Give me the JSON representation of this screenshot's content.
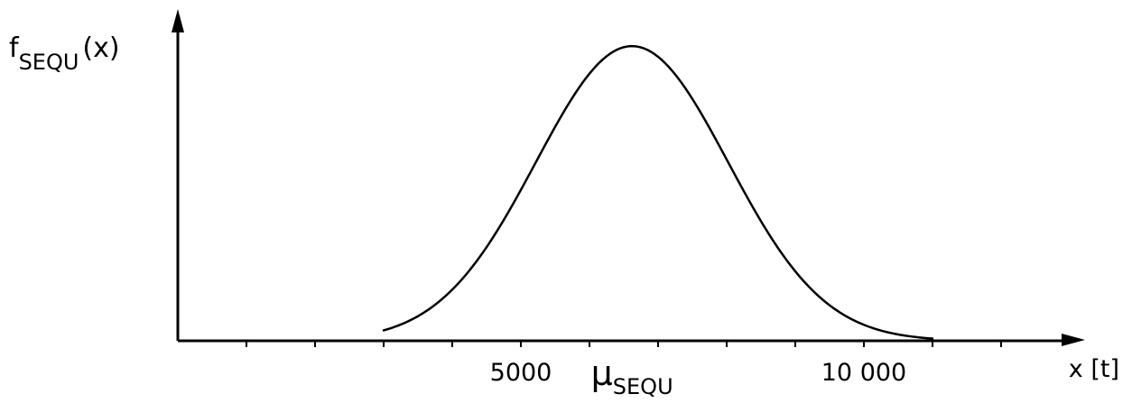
{
  "chart_data": {
    "type": "line",
    "title": "",
    "ylabel": {
      "main": "f",
      "sub": "SEQU",
      "arg": "(x)"
    },
    "xlabel": "x [t]",
    "xlim": [
      0,
      13000
    ],
    "ylim": [
      0,
      1.08
    ],
    "x_tick_labels": [
      {
        "value": 5000,
        "text": "5000"
      },
      {
        "value": 6620,
        "text": "μ",
        "sub": "SEQU"
      },
      {
        "value": 10000,
        "text": "10 000"
      }
    ],
    "x_minor_ticks": [
      1000,
      2000,
      3000,
      4000,
      5000,
      6000,
      7000,
      8000,
      9000,
      10000,
      11000,
      12000
    ],
    "y_ticks": [],
    "series": [
      {
        "mean": 6620,
        "std": 1400,
        "points": [
          [
            3000,
            0.0
          ],
          [
            3500,
            0.01
          ],
          [
            4000,
            0.03
          ],
          [
            4500,
            0.1
          ],
          [
            5000,
            0.26
          ],
          [
            5500,
            0.53
          ],
          [
            6000,
            0.82
          ],
          [
            6300,
            0.95
          ],
          [
            6620,
            1.0
          ],
          [
            7000,
            0.96
          ],
          [
            7500,
            0.82
          ],
          [
            8000,
            0.62
          ],
          [
            8500,
            0.41
          ],
          [
            9000,
            0.24
          ],
          [
            9500,
            0.12
          ],
          [
            10000,
            0.05
          ],
          [
            10500,
            0.015
          ],
          [
            11000,
            0.0
          ]
        ]
      }
    ],
    "grid": false,
    "legend": "none"
  }
}
